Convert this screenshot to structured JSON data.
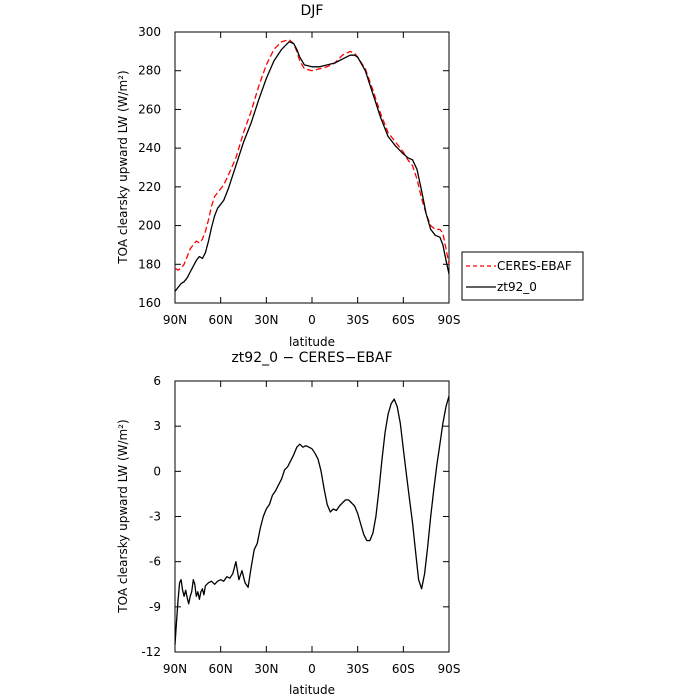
{
  "chart_data": [
    {
      "type": "line",
      "title": "DJF",
      "xlabel": "latitude",
      "ylabel": "TOA clearsky upward LW (W/m²)",
      "xlim": [
        90,
        -90
      ],
      "ylim": [
        160,
        300
      ],
      "x_tick_values": [
        90,
        60,
        30,
        0,
        -30,
        -60,
        -90
      ],
      "x_tick_labels": [
        "90N",
        "60N",
        "30N",
        "0",
        "30S",
        "60S",
        "90S"
      ],
      "y_ticks": [
        160,
        180,
        200,
        220,
        240,
        260,
        280,
        300
      ],
      "legend_position": "right",
      "series": [
        {
          "name": "CERES-EBAF",
          "color": "#ff0000",
          "dash": "dashed",
          "x": [
            90,
            88,
            86,
            84,
            82,
            80,
            78,
            76,
            74,
            72,
            70,
            68,
            66,
            64,
            62,
            60,
            58,
            55,
            50,
            45,
            40,
            35,
            30,
            25,
            20,
            15,
            12,
            10,
            8,
            5,
            0,
            -5,
            -10,
            -15,
            -20,
            -25,
            -28,
            -30,
            -35,
            -40,
            -45,
            -50,
            -55,
            -60,
            -63,
            -66,
            -69,
            -72,
            -75,
            -78,
            -81,
            -84,
            -86,
            -88,
            -90
          ],
          "values": [
            178,
            177,
            178,
            180,
            184,
            188,
            190,
            192,
            191,
            193,
            197,
            203,
            210,
            215,
            217,
            219,
            221,
            226,
            235,
            248,
            259,
            272,
            283,
            291,
            295,
            296,
            294,
            290,
            285,
            281,
            280,
            281,
            282,
            284,
            288,
            290,
            289,
            287,
            281,
            270,
            258,
            248,
            243,
            238,
            234,
            231,
            224,
            214,
            206,
            200,
            198,
            198,
            196,
            188,
            180
          ]
        },
        {
          "name": "zt92_0",
          "color": "#000000",
          "dash": "solid",
          "x": [
            90,
            88,
            86,
            84,
            82,
            80,
            78,
            76,
            74,
            72,
            70,
            68,
            66,
            64,
            62,
            60,
            58,
            55,
            50,
            45,
            40,
            35,
            30,
            25,
            20,
            15,
            12,
            10,
            8,
            5,
            0,
            -5,
            -10,
            -15,
            -20,
            -25,
            -28,
            -30,
            -35,
            -40,
            -45,
            -50,
            -55,
            -60,
            -63,
            -66,
            -69,
            -72,
            -75,
            -78,
            -81,
            -84,
            -86,
            -88,
            -90
          ],
          "values": [
            166,
            168,
            170,
            171,
            173,
            176,
            179,
            182,
            184,
            183,
            186,
            192,
            199,
            205,
            209,
            211,
            213,
            219,
            231,
            243,
            253,
            265,
            276,
            285,
            291,
            295,
            294,
            291,
            287,
            283,
            282,
            282,
            283,
            284,
            286,
            288,
            288,
            287,
            280,
            268,
            256,
            246,
            241,
            237,
            235,
            234,
            229,
            218,
            206,
            198,
            195,
            194,
            190,
            182,
            175
          ]
        }
      ]
    },
    {
      "type": "line",
      "title": "zt92_0 − CERES−EBAF",
      "xlabel": "latitude",
      "ylabel": "TOA clearsky upward LW (W/m²)",
      "xlim": [
        90,
        -90
      ],
      "ylim": [
        -12,
        6
      ],
      "x_tick_values": [
        90,
        60,
        30,
        0,
        -30,
        -60,
        -90
      ],
      "x_tick_labels": [
        "90N",
        "60N",
        "30N",
        "0",
        "30S",
        "60S",
        "90S"
      ],
      "y_ticks": [
        -12,
        -9,
        -6,
        -3,
        0,
        3,
        6
      ],
      "series": [
        {
          "color": "#000000",
          "x": [
            90,
            89,
            88,
            87,
            86,
            85,
            84,
            83,
            82,
            81,
            80,
            79,
            78,
            77,
            76,
            75,
            74,
            73,
            72,
            71,
            70,
            68,
            66,
            64,
            62,
            60,
            58,
            56,
            54,
            52,
            50,
            48,
            46,
            44,
            42,
            40,
            38,
            36,
            34,
            32,
            30,
            28,
            26,
            24,
            22,
            20,
            18,
            16,
            14,
            12,
            10,
            8,
            6,
            4,
            2,
            0,
            -2,
            -4,
            -6,
            -8,
            -10,
            -12,
            -14,
            -16,
            -18,
            -20,
            -22,
            -24,
            -26,
            -28,
            -30,
            -32,
            -34,
            -36,
            -38,
            -40,
            -42,
            -44,
            -46,
            -48,
            -50,
            -52,
            -54,
            -56,
            -58,
            -60,
            -62,
            -64,
            -66,
            -68,
            -70,
            -72,
            -74,
            -76,
            -78,
            -80,
            -82,
            -84,
            -86,
            -88,
            -90
          ],
          "values": [
            -11.5,
            -10.0,
            -8.6,
            -7.4,
            -7.2,
            -7.9,
            -8.3,
            -7.9,
            -8.4,
            -8.8,
            -8.3,
            -8.0,
            -7.2,
            -7.5,
            -8.3,
            -8.0,
            -8.5,
            -8.0,
            -7.8,
            -8.2,
            -7.6,
            -7.4,
            -7.3,
            -7.5,
            -7.3,
            -7.2,
            -7.3,
            -7.0,
            -7.1,
            -6.8,
            -6.0,
            -7.2,
            -6.6,
            -7.4,
            -7.7,
            -6.4,
            -5.2,
            -4.8,
            -3.8,
            -3.0,
            -2.5,
            -2.2,
            -1.6,
            -1.3,
            -0.9,
            -0.5,
            0.1,
            0.3,
            0.7,
            1.1,
            1.6,
            1.8,
            1.6,
            1.7,
            1.6,
            1.5,
            1.2,
            0.8,
            0.0,
            -1.2,
            -2.2,
            -2.7,
            -2.5,
            -2.6,
            -2.3,
            -2.1,
            -1.9,
            -1.9,
            -2.1,
            -2.3,
            -2.8,
            -3.5,
            -4.2,
            -4.6,
            -4.6,
            -4.1,
            -3.0,
            -1.2,
            0.8,
            2.6,
            3.8,
            4.5,
            4.8,
            4.3,
            3.2,
            1.5,
            -0.2,
            -1.8,
            -3.4,
            -5.3,
            -7.2,
            -7.8,
            -6.8,
            -5.0,
            -3.0,
            -1.2,
            0.4,
            1.8,
            3.2,
            4.3,
            5.0
          ]
        }
      ]
    }
  ]
}
